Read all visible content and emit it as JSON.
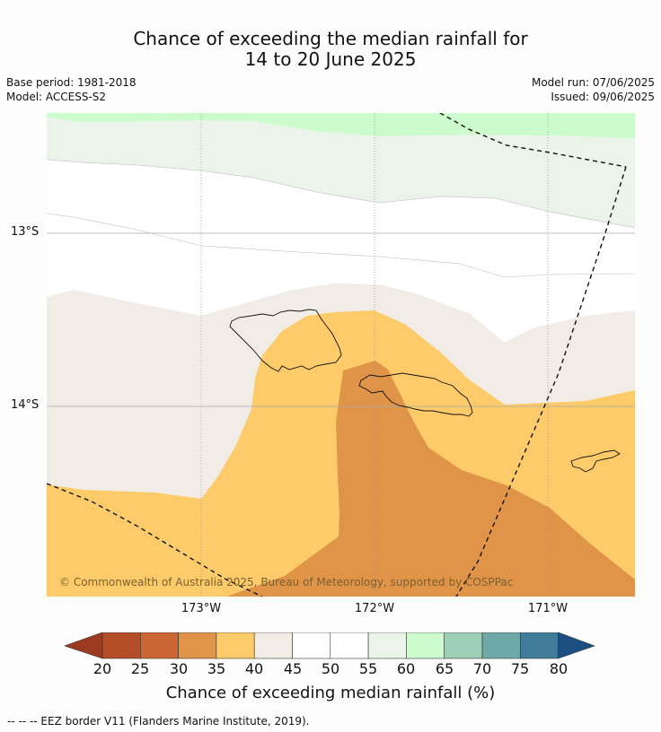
{
  "title_line1": "Chance of exceeding the median rainfall for",
  "title_line2": "14 to 20 June 2025",
  "base_period": "Base period: 1981-2018",
  "model": "Model: ACCESS-S2",
  "model_run": "Model run: 07/06/2025",
  "issued": "Issued: 09/06/2025",
  "lat_labels": [
    "13°S",
    "14°S"
  ],
  "lon_labels": [
    "173°W",
    "172°W",
    "171°W"
  ],
  "copyright": "© Commonwealth of Australia 2025, Bureau of Meteorology, supported by COSPPac",
  "colorbar": {
    "ticks": [
      "20",
      "25",
      "30",
      "35",
      "40",
      "45",
      "50",
      "55",
      "60",
      "65",
      "70",
      "75",
      "80"
    ],
    "label": "Chance of exceeding median rainfall (%)",
    "colors": [
      "#9b3a20",
      "#b44e28",
      "#cc6633",
      "#e09448",
      "#fdcb6a",
      "#f1ede6",
      "#ffffff",
      "#ffffff",
      "#eaf4e9",
      "#ccfcce",
      "#9ccfb6",
      "#6ea9a8",
      "#3f7d9a",
      "#1b4f82"
    ]
  },
  "legend_note": "--  --  -- EEZ border V11 (Flanders Marine Institute, 2019)."
}
